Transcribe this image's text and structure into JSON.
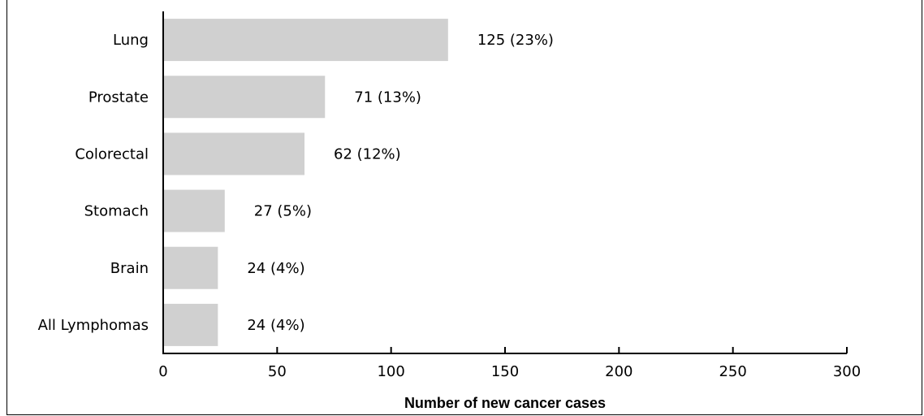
{
  "chart_data": {
    "type": "bar",
    "orientation": "horizontal",
    "categories": [
      "Lung",
      "Prostate",
      "Colorectal",
      "Stomach",
      "Brain",
      "All Lymphomas"
    ],
    "values": [
      125,
      71,
      62,
      27,
      24,
      24
    ],
    "value_labels": [
      "125 (23%)",
      "71 (13%)",
      "62 (12%)",
      "27 (5%)",
      "24 (4%)",
      "24 (4%)"
    ],
    "xlabel": "Number of new cancer cases",
    "xlim": [
      0,
      300
    ],
    "xticks": [
      0,
      50,
      100,
      150,
      200,
      250,
      300
    ],
    "grid": false,
    "bar_color": "#d0d0d0"
  }
}
